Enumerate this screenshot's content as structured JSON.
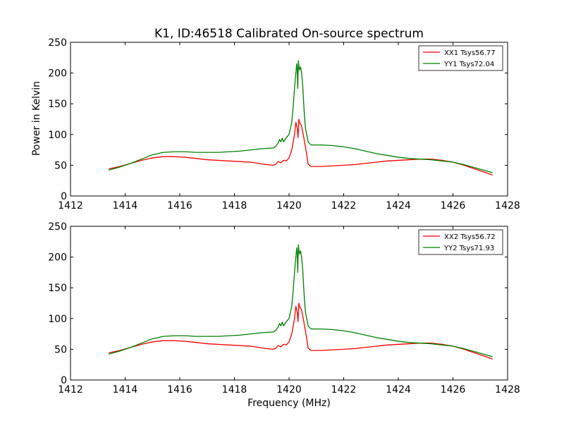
{
  "figure": {
    "title": "K1, ID:46518 Calibrated On-source spectrum",
    "ylabel": "Power in Kelvin",
    "xlabel": "Frequency (MHz)"
  },
  "chart_data": [
    {
      "type": "line",
      "xlim": [
        1412,
        1428
      ],
      "ylim": [
        0,
        250
      ],
      "xticks": [
        1412,
        1414,
        1416,
        1418,
        1420,
        1422,
        1424,
        1426,
        1428
      ],
      "yticks": [
        0,
        50,
        100,
        150,
        200,
        250
      ],
      "grid": false,
      "legend_position": "top-right",
      "series": [
        {
          "name": "XX1 Tsys56.77",
          "color": "#ff0000",
          "points": [
            [
              1413.4,
              44
            ],
            [
              1413.8,
              48
            ],
            [
              1414.2,
              53
            ],
            [
              1414.6,
              58
            ],
            [
              1415.0,
              62
            ],
            [
              1415.4,
              64
            ],
            [
              1415.8,
              64
            ],
            [
              1416.2,
              63
            ],
            [
              1416.6,
              61
            ],
            [
              1417.0,
              59
            ],
            [
              1417.4,
              58
            ],
            [
              1417.8,
              57
            ],
            [
              1418.2,
              56
            ],
            [
              1418.6,
              55
            ],
            [
              1419.0,
              52
            ],
            [
              1419.4,
              50
            ],
            [
              1419.5,
              51
            ],
            [
              1419.6,
              56
            ],
            [
              1419.7,
              54
            ],
            [
              1419.8,
              58
            ],
            [
              1419.9,
              57
            ],
            [
              1420.0,
              62
            ],
            [
              1420.1,
              75
            ],
            [
              1420.2,
              100
            ],
            [
              1420.25,
              120
            ],
            [
              1420.3,
              110
            ],
            [
              1420.33,
              95
            ],
            [
              1420.36,
              125
            ],
            [
              1420.4,
              118
            ],
            [
              1420.45,
              115
            ],
            [
              1420.5,
              105
            ],
            [
              1420.6,
              80
            ],
            [
              1420.7,
              52
            ],
            [
              1420.8,
              48
            ],
            [
              1421.2,
              48
            ],
            [
              1421.6,
              49
            ],
            [
              1422.0,
              50
            ],
            [
              1422.4,
              51
            ],
            [
              1422.8,
              53
            ],
            [
              1423.2,
              55
            ],
            [
              1423.6,
              57
            ],
            [
              1424.0,
              58
            ],
            [
              1424.4,
              59
            ],
            [
              1424.8,
              60
            ],
            [
              1425.2,
              60
            ],
            [
              1425.6,
              58
            ],
            [
              1426.0,
              55
            ],
            [
              1426.4,
              50
            ],
            [
              1426.8,
              44
            ],
            [
              1427.2,
              38
            ],
            [
              1427.45,
              34
            ]
          ]
        },
        {
          "name": "YY1 Tsys72.04",
          "color": "#008000",
          "points": [
            [
              1413.4,
              42
            ],
            [
              1413.8,
              47
            ],
            [
              1414.2,
              53
            ],
            [
              1414.6,
              60
            ],
            [
              1415.0,
              67
            ],
            [
              1415.4,
              71
            ],
            [
              1415.8,
              72
            ],
            [
              1416.2,
              72
            ],
            [
              1416.6,
              71
            ],
            [
              1417.0,
              71
            ],
            [
              1417.4,
              71
            ],
            [
              1417.8,
              72
            ],
            [
              1418.2,
              73
            ],
            [
              1418.6,
              75
            ],
            [
              1419.0,
              77
            ],
            [
              1419.4,
              78
            ],
            [
              1419.5,
              80
            ],
            [
              1419.6,
              86
            ],
            [
              1419.65,
              92
            ],
            [
              1419.7,
              88
            ],
            [
              1419.75,
              94
            ],
            [
              1419.8,
              88
            ],
            [
              1419.9,
              95
            ],
            [
              1420.0,
              100
            ],
            [
              1420.05,
              110
            ],
            [
              1420.1,
              120
            ],
            [
              1420.15,
              145
            ],
            [
              1420.2,
              175
            ],
            [
              1420.25,
              200
            ],
            [
              1420.28,
              215
            ],
            [
              1420.3,
              205
            ],
            [
              1420.32,
              175
            ],
            [
              1420.34,
              220
            ],
            [
              1420.38,
              205
            ],
            [
              1420.42,
              210
            ],
            [
              1420.46,
              200
            ],
            [
              1420.5,
              180
            ],
            [
              1420.55,
              140
            ],
            [
              1420.6,
              110
            ],
            [
              1420.7,
              88
            ],
            [
              1420.8,
              83
            ],
            [
              1421.2,
              83
            ],
            [
              1421.6,
              82
            ],
            [
              1422.0,
              80
            ],
            [
              1422.4,
              77
            ],
            [
              1422.8,
              73
            ],
            [
              1423.2,
              69
            ],
            [
              1423.6,
              66
            ],
            [
              1424.0,
              63
            ],
            [
              1424.4,
              61
            ],
            [
              1424.8,
              60
            ],
            [
              1425.2,
              59
            ],
            [
              1425.6,
              57
            ],
            [
              1426.0,
              55
            ],
            [
              1426.4,
              51
            ],
            [
              1426.8,
              46
            ],
            [
              1427.2,
              41
            ],
            [
              1427.45,
              38
            ]
          ]
        }
      ]
    },
    {
      "type": "line",
      "xlim": [
        1412,
        1428
      ],
      "ylim": [
        0,
        250
      ],
      "xticks": [
        1412,
        1414,
        1416,
        1418,
        1420,
        1422,
        1424,
        1426,
        1428
      ],
      "yticks": [
        0,
        50,
        100,
        150,
        200,
        250
      ],
      "grid": false,
      "legend_position": "top-right",
      "series": [
        {
          "name": "XX2 Tsys56.72",
          "color": "#ff0000",
          "points": [
            [
              1413.4,
              44
            ],
            [
              1413.8,
              48
            ],
            [
              1414.2,
              53
            ],
            [
              1414.6,
              58
            ],
            [
              1415.0,
              62
            ],
            [
              1415.4,
              64
            ],
            [
              1415.8,
              64
            ],
            [
              1416.2,
              63
            ],
            [
              1416.6,
              61
            ],
            [
              1417.0,
              59
            ],
            [
              1417.4,
              58
            ],
            [
              1417.8,
              57
            ],
            [
              1418.2,
              56
            ],
            [
              1418.6,
              55
            ],
            [
              1419.0,
              52
            ],
            [
              1419.4,
              50
            ],
            [
              1419.5,
              51
            ],
            [
              1419.6,
              56
            ],
            [
              1419.7,
              54
            ],
            [
              1419.8,
              58
            ],
            [
              1419.9,
              57
            ],
            [
              1420.0,
              62
            ],
            [
              1420.1,
              75
            ],
            [
              1420.2,
              100
            ],
            [
              1420.25,
              120
            ],
            [
              1420.3,
              110
            ],
            [
              1420.33,
              95
            ],
            [
              1420.36,
              125
            ],
            [
              1420.4,
              118
            ],
            [
              1420.45,
              115
            ],
            [
              1420.5,
              105
            ],
            [
              1420.6,
              80
            ],
            [
              1420.7,
              52
            ],
            [
              1420.8,
              48
            ],
            [
              1421.2,
              48
            ],
            [
              1421.6,
              49
            ],
            [
              1422.0,
              50
            ],
            [
              1422.4,
              51
            ],
            [
              1422.8,
              53
            ],
            [
              1423.2,
              55
            ],
            [
              1423.6,
              57
            ],
            [
              1424.0,
              58
            ],
            [
              1424.4,
              59
            ],
            [
              1424.8,
              60
            ],
            [
              1425.2,
              60
            ],
            [
              1425.6,
              58
            ],
            [
              1426.0,
              55
            ],
            [
              1426.4,
              50
            ],
            [
              1426.8,
              44
            ],
            [
              1427.2,
              38
            ],
            [
              1427.45,
              34
            ]
          ]
        },
        {
          "name": "YY2 Tsys71.93",
          "color": "#008000",
          "points": [
            [
              1413.4,
              42
            ],
            [
              1413.8,
              47
            ],
            [
              1414.2,
              53
            ],
            [
              1414.6,
              60
            ],
            [
              1415.0,
              67
            ],
            [
              1415.4,
              71
            ],
            [
              1415.8,
              72
            ],
            [
              1416.2,
              72
            ],
            [
              1416.6,
              71
            ],
            [
              1417.0,
              71
            ],
            [
              1417.4,
              71
            ],
            [
              1417.8,
              72
            ],
            [
              1418.2,
              73
            ],
            [
              1418.6,
              75
            ],
            [
              1419.0,
              77
            ],
            [
              1419.4,
              78
            ],
            [
              1419.5,
              80
            ],
            [
              1419.6,
              86
            ],
            [
              1419.65,
              92
            ],
            [
              1419.7,
              88
            ],
            [
              1419.75,
              94
            ],
            [
              1419.8,
              88
            ],
            [
              1419.9,
              95
            ],
            [
              1420.0,
              100
            ],
            [
              1420.05,
              110
            ],
            [
              1420.1,
              120
            ],
            [
              1420.15,
              145
            ],
            [
              1420.2,
              175
            ],
            [
              1420.25,
              200
            ],
            [
              1420.28,
              215
            ],
            [
              1420.3,
              205
            ],
            [
              1420.32,
              175
            ],
            [
              1420.34,
              220
            ],
            [
              1420.38,
              205
            ],
            [
              1420.42,
              210
            ],
            [
              1420.46,
              200
            ],
            [
              1420.5,
              180
            ],
            [
              1420.55,
              140
            ],
            [
              1420.6,
              110
            ],
            [
              1420.7,
              88
            ],
            [
              1420.8,
              83
            ],
            [
              1421.2,
              83
            ],
            [
              1421.6,
              82
            ],
            [
              1422.0,
              80
            ],
            [
              1422.4,
              77
            ],
            [
              1422.8,
              73
            ],
            [
              1423.2,
              69
            ],
            [
              1423.6,
              66
            ],
            [
              1424.0,
              63
            ],
            [
              1424.4,
              61
            ],
            [
              1424.8,
              60
            ],
            [
              1425.2,
              59
            ],
            [
              1425.6,
              57
            ],
            [
              1426.0,
              55
            ],
            [
              1426.4,
              51
            ],
            [
              1426.8,
              46
            ],
            [
              1427.2,
              41
            ],
            [
              1427.45,
              38
            ]
          ]
        }
      ]
    }
  ]
}
